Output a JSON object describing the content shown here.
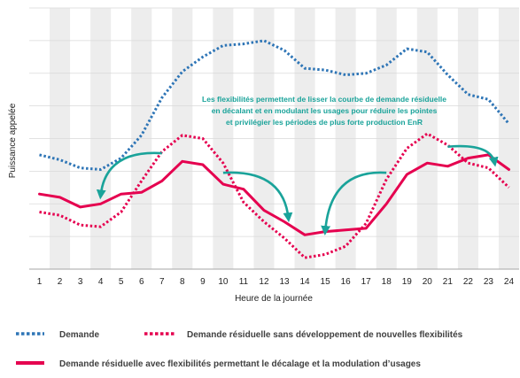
{
  "chart_data": {
    "type": "line",
    "title": "",
    "xlabel": "Heure de la journée",
    "ylabel": "Puissance appelée",
    "x": [
      1,
      2,
      3,
      4,
      5,
      6,
      7,
      8,
      9,
      10,
      11,
      12,
      13,
      14,
      15,
      16,
      17,
      18,
      19,
      20,
      21,
      22,
      23,
      24
    ],
    "ylim": [
      0,
      8
    ],
    "grid": true,
    "y_ticks_labeled": false,
    "alternating_column_shading": true,
    "series": [
      {
        "name": "Demande",
        "style": "dotted",
        "color": "#2E75B6",
        "values": [
          3.5,
          3.35,
          3.1,
          3.05,
          3.4,
          4.1,
          5.25,
          6.05,
          6.5,
          6.85,
          6.9,
          7.0,
          6.7,
          6.15,
          6.1,
          5.95,
          6.0,
          6.25,
          6.75,
          6.65,
          5.95,
          5.35,
          5.2,
          4.45
        ]
      },
      {
        "name": "Demande résiduelle sans développement de nouvelles flexibilités",
        "style": "dotted",
        "color": "#E5004F",
        "values": [
          1.75,
          1.65,
          1.35,
          1.3,
          1.75,
          2.7,
          3.6,
          4.1,
          4.0,
          3.25,
          2.05,
          1.45,
          0.95,
          0.35,
          0.45,
          0.7,
          1.4,
          2.75,
          3.7,
          4.15,
          3.8,
          3.25,
          3.1,
          2.5
        ]
      },
      {
        "name": "Demande résiduelle avec flexibilités permettant le décalage et la modulation d’usages",
        "style": "solid",
        "color": "#E5004F",
        "values": [
          2.3,
          2.2,
          1.9,
          2.0,
          2.3,
          2.35,
          2.7,
          3.3,
          3.2,
          2.6,
          2.45,
          1.8,
          1.45,
          1.05,
          1.15,
          1.2,
          1.25,
          2.0,
          2.9,
          3.25,
          3.15,
          3.4,
          3.5,
          3.05
        ]
      }
    ],
    "annotation": {
      "lines": [
        "Les flexibilités permettent de lisser la courbe de demande résiduelle",
        "en décalant et en modulant les usages pour réduire les pointes",
        "et privilégier les périodes de plus forte production EnR"
      ],
      "color": "#1AA39A"
    },
    "arrows": [
      {
        "from": [
          7,
          3.55
        ],
        "to": [
          4.0,
          2.25
        ],
        "direction": "left"
      },
      {
        "from": [
          10,
          2.95
        ],
        "to": [
          13.2,
          1.55
        ],
        "direction": "right"
      },
      {
        "from": [
          18,
          2.95
        ],
        "to": [
          15.0,
          1.15
        ],
        "direction": "left"
      },
      {
        "from": [
          21,
          3.75
        ],
        "to": [
          23.3,
          3.25
        ],
        "direction": "right"
      }
    ],
    "legend": {
      "placement": "bottom",
      "rows": [
        [
          "Demande",
          "Demande résiduelle sans développement de nouvelles flexibilités"
        ],
        [
          "Demande résiduelle avec flexibilités permettant le décalage et la modulation d’usages"
        ]
      ]
    },
    "colors": {
      "shade": "#EDEDED",
      "grid": "#D9D9D9",
      "axis": "#A6A6A6",
      "arrow": "#1AA39A"
    }
  }
}
